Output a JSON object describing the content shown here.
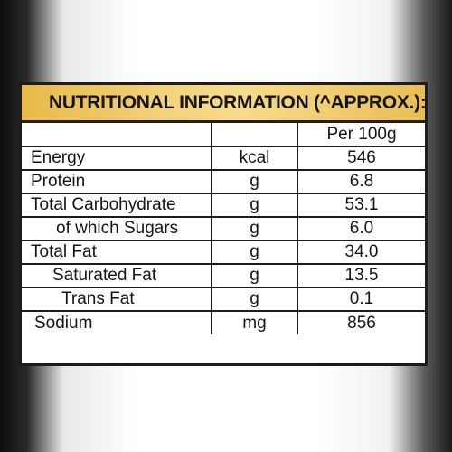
{
  "title": "NUTRITIONAL INFORMATION (^APPROX.):",
  "column_header": "Per 100g",
  "rows": [
    {
      "name": "Energy",
      "unit": "kcal",
      "value": "546"
    },
    {
      "name": "Protein",
      "unit": "g",
      "value": "6.8"
    },
    {
      "name": "Total Carbohydrate",
      "unit": "g",
      "value": "53.1"
    },
    {
      "name": "of which Sugars",
      "unit": "g",
      "value": "6.0"
    },
    {
      "name": "Total Fat",
      "unit": "g",
      "value": "34.0"
    },
    {
      "name": "Saturated Fat",
      "unit": "g",
      "value": "13.5"
    },
    {
      "name": "Trans Fat",
      "unit": "g",
      "value": "0.1"
    },
    {
      "name": "Sodium",
      "unit": "mg",
      "value": "856"
    }
  ],
  "colors": {
    "header_gold": "#f3d27a",
    "border": "#1c1c1c",
    "text": "#151515"
  }
}
